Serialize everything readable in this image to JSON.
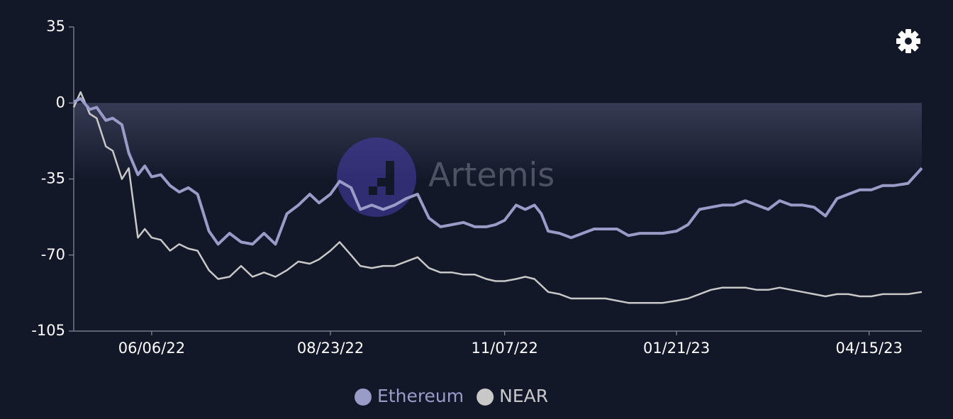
{
  "chart_data": {
    "type": "line",
    "watermark": "Artemis",
    "x": [
      "05/03/22",
      "05/06/22",
      "05/10/22",
      "05/13/22",
      "05/17/22",
      "05/20/22",
      "05/24/22",
      "05/27/22",
      "05/31/22",
      "06/03/22",
      "06/06/22",
      "06/10/22",
      "06/14/22",
      "06/18/22",
      "06/22/22",
      "06/26/22",
      "07/01/22",
      "07/05/22",
      "07/10/22",
      "07/15/22",
      "07/20/22",
      "07/25/22",
      "07/30/22",
      "08/04/22",
      "08/09/22",
      "08/14/22",
      "08/18/22",
      "08/23/22",
      "08/27/22",
      "09/01/22",
      "09/05/22",
      "09/10/22",
      "09/15/22",
      "09/20/22",
      "09/25/22",
      "09/30/22",
      "10/05/22",
      "10/10/22",
      "10/15/22",
      "10/20/22",
      "10/25/22",
      "10/30/22",
      "11/03/22",
      "11/07/22",
      "11/12/22",
      "11/16/22",
      "11/20/22",
      "11/23/22",
      "11/26/22",
      "12/01/22",
      "12/06/22",
      "12/11/22",
      "12/16/22",
      "12/21/22",
      "12/26/22",
      "12/31/22",
      "01/05/23",
      "01/10/23",
      "01/15/23",
      "01/21/23",
      "01/26/23",
      "01/31/23",
      "02/05/23",
      "02/10/23",
      "02/15/23",
      "02/20/23",
      "02/25/23",
      "03/02/23",
      "03/07/23",
      "03/12/23",
      "03/17/23",
      "03/22/23",
      "03/27/23",
      "04/01/23",
      "04/06/23",
      "04/11/23",
      "04/16/23",
      "04/21/23",
      "04/26/23",
      "05/02/23",
      "05/08/23"
    ],
    "series": [
      {
        "name": "Ethereum",
        "color": "#9a9cc8",
        "values": [
          0.5,
          2,
          -3,
          -2,
          -8,
          -7,
          -10,
          -23,
          -33,
          -29,
          -34,
          -33,
          -38,
          -41,
          -39,
          -42,
          -59,
          -65,
          -60,
          -64,
          -65,
          -60,
          -65,
          -51,
          -47,
          -42,
          -46,
          -42,
          -36,
          -39,
          -49,
          -47,
          -49,
          -47,
          -44,
          -42,
          -53,
          -57,
          -56,
          -55,
          -57,
          -57,
          -56,
          -54,
          -47,
          -49,
          -47,
          -51,
          -59,
          -60,
          -62,
          -60,
          -58,
          -58,
          -58,
          -61,
          -60,
          -60,
          -60,
          -59,
          -56,
          -49,
          -48,
          -47,
          -47,
          -45,
          -47,
          -49,
          -45,
          -47,
          -47,
          -48,
          -52,
          -44,
          -42,
          -40,
          -40,
          -38,
          -38,
          -37,
          -30
        ]
      },
      {
        "name": "NEAR",
        "color": "#c8c8c8",
        "values": [
          -2,
          5,
          -5,
          -7,
          -20,
          -22,
          -35,
          -30,
          -62,
          -58,
          -62,
          -63,
          -68,
          -65,
          -67,
          -68,
          -77,
          -81,
          -80,
          -75,
          -80,
          -78,
          -80,
          -77,
          -73,
          -74,
          -72,
          -68,
          -64,
          -70,
          -75,
          -76,
          -75,
          -75,
          -73,
          -71,
          -76,
          -78,
          -78,
          -79,
          -79,
          -81,
          -82,
          -82,
          -81,
          -80,
          -81,
          -84,
          -87,
          -88,
          -90,
          -90,
          -90,
          -90,
          -91,
          -92,
          -92,
          -92,
          -92,
          -91,
          -90,
          -88,
          -86,
          -85,
          -85,
          -85,
          -86,
          -86,
          -85,
          -86,
          -87,
          -88,
          -89,
          -88,
          -88,
          -89,
          -89,
          -88,
          -88,
          -88,
          -87
        ]
      }
    ],
    "xlim": [
      "05/03/22",
      "05/08/23"
    ],
    "xticks": [
      "06/06/22",
      "08/23/22",
      "11/07/22",
      "01/21/23",
      "04/15/23"
    ],
    "ylim": [
      -105,
      35
    ],
    "yticks": [
      35,
      0,
      -35,
      -70,
      -105
    ],
    "legend": "bottom"
  }
}
